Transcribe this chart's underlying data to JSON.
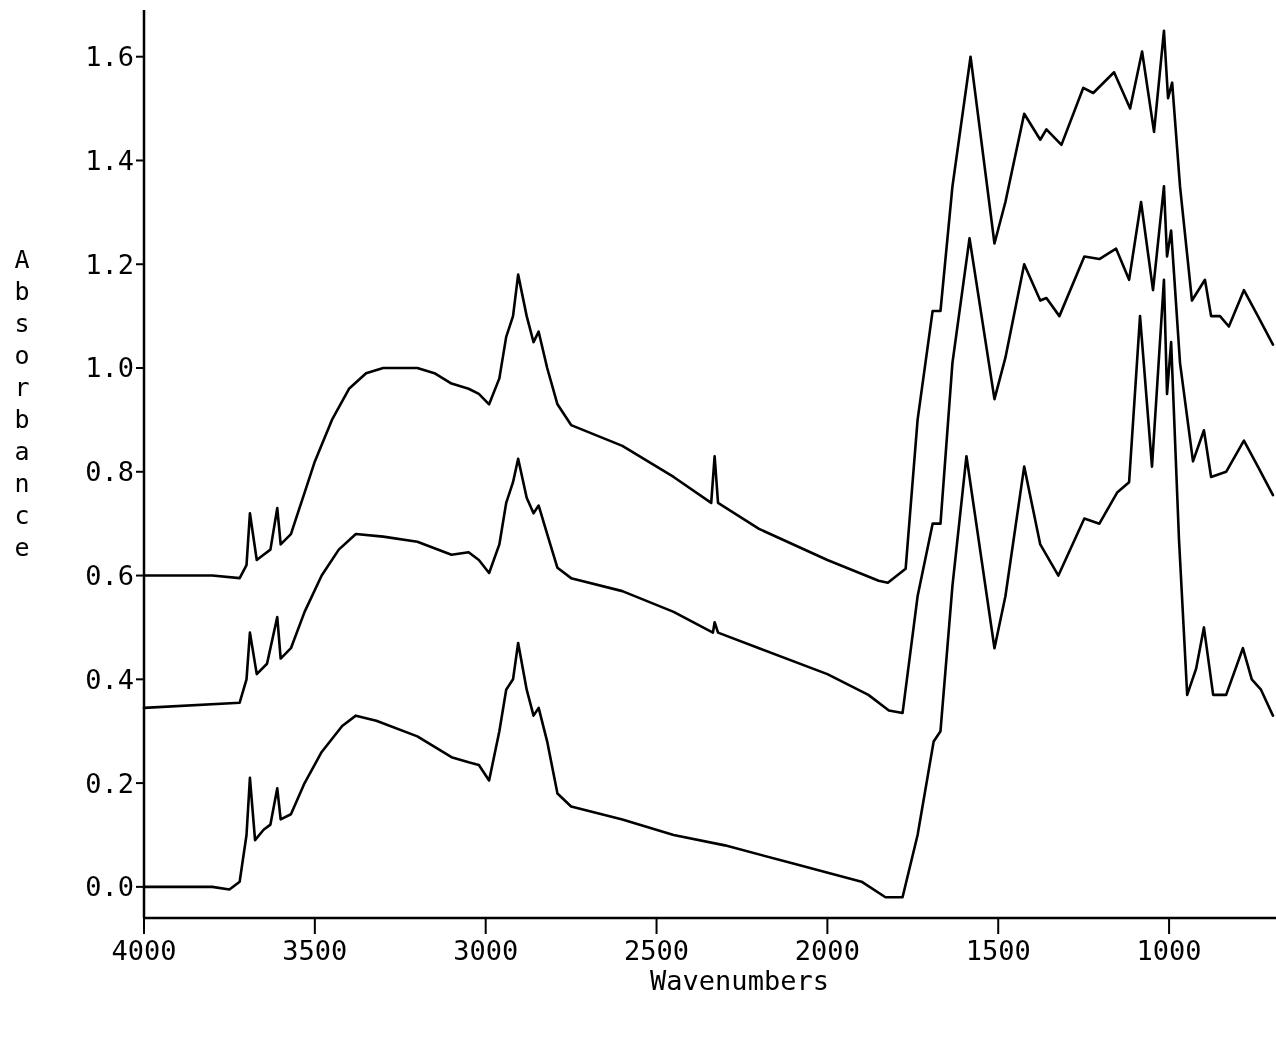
{
  "chart_data": {
    "type": "line",
    "xlabel": "Wavenumbers",
    "ylabel": "Absorbance",
    "xlim": [
      4000,
      690
    ],
    "ylim": [
      -0.06,
      1.69
    ],
    "xticks": [
      4000,
      3500,
      3000,
      2500,
      2000,
      1500,
      1000
    ],
    "yticks": [
      {
        "value": 0,
        "label": "0.0"
      },
      0.2,
      0.4,
      0.6,
      0.8,
      {
        "value": 1,
        "label": "1.0"
      },
      1.2,
      1.4,
      1.6
    ],
    "series": [
      {
        "color": "#000000",
        "x": [
          4000,
          3800,
          3720,
          3700,
          3690,
          3670,
          3650,
          3630,
          3610,
          3600,
          3570,
          3530,
          3500,
          3450,
          3400,
          3350,
          3300,
          3200,
          3150,
          3100,
          3050,
          3020,
          2990,
          2960,
          2940,
          2920,
          2905,
          2880,
          2860,
          2845,
          2820,
          2790,
          2750,
          2600,
          2450,
          2340,
          2330,
          2320,
          2200,
          2000,
          1850,
          1823,
          1771,
          1736,
          1692,
          1669,
          1634,
          1581,
          1511,
          1479,
          1424,
          1377,
          1359,
          1315,
          1251,
          1222,
          1161,
          1114,
          1079,
          1044,
          1015,
          1003,
          991,
          968,
          933,
          895,
          877,
          851,
          825,
          781,
          740,
          696
        ],
        "values": [
          0.6,
          0.6,
          0.595,
          0.62,
          0.72,
          0.63,
          0.64,
          0.65,
          0.73,
          0.66,
          0.68,
          0.76,
          0.82,
          0.9,
          0.96,
          0.99,
          1.0,
          1.0,
          0.99,
          0.97,
          0.96,
          0.95,
          0.93,
          0.98,
          1.06,
          1.1,
          1.18,
          1.1,
          1.05,
          1.07,
          1.0,
          0.93,
          0.89,
          0.85,
          0.79,
          0.74,
          0.83,
          0.74,
          0.69,
          0.63,
          0.59,
          0.586,
          0.613,
          0.9,
          1.11,
          1.11,
          1.35,
          1.6,
          1.24,
          1.32,
          1.49,
          1.44,
          1.46,
          1.43,
          1.54,
          1.53,
          1.57,
          1.5,
          1.61,
          1.455,
          1.65,
          1.52,
          1.55,
          1.35,
          1.13,
          1.17,
          1.1,
          1.1,
          1.08,
          1.15,
          1.1,
          1.045
        ]
      },
      {
        "color": "#000000",
        "x": [
          4000,
          3720,
          3700,
          3690,
          3670,
          3640,
          3610,
          3600,
          3570,
          3530,
          3480,
          3430,
          3380,
          3300,
          3200,
          3100,
          3050,
          3020,
          2990,
          2960,
          2940,
          2920,
          2905,
          2880,
          2860,
          2845,
          2820,
          2790,
          2750,
          2600,
          2450,
          2335,
          2330,
          2320,
          2200,
          2000,
          1880,
          1820,
          1780,
          1736,
          1692,
          1669,
          1634,
          1584,
          1511,
          1479,
          1424,
          1377,
          1359,
          1321,
          1248,
          1204,
          1155,
          1117,
          1082,
          1047,
          1015,
          1006,
          994,
          968,
          930,
          898,
          877,
          833,
          781,
          740,
          696
        ],
        "values": [
          0.345,
          0.355,
          0.4,
          0.49,
          0.41,
          0.43,
          0.52,
          0.44,
          0.46,
          0.53,
          0.6,
          0.65,
          0.68,
          0.675,
          0.665,
          0.64,
          0.645,
          0.63,
          0.605,
          0.66,
          0.74,
          0.78,
          0.825,
          0.75,
          0.72,
          0.735,
          0.68,
          0.615,
          0.595,
          0.57,
          0.53,
          0.49,
          0.51,
          0.49,
          0.46,
          0.41,
          0.37,
          0.34,
          0.335,
          0.56,
          0.7,
          0.7,
          1.01,
          1.25,
          0.94,
          1.02,
          1.2,
          1.13,
          1.135,
          1.1,
          1.215,
          1.21,
          1.23,
          1.17,
          1.32,
          1.15,
          1.35,
          1.215,
          1.265,
          1.01,
          0.82,
          0.88,
          0.79,
          0.8,
          0.86,
          0.81,
          0.755
        ]
      },
      {
        "color": "#000000",
        "x": [
          4000,
          3800,
          3750,
          3720,
          3700,
          3690,
          3675,
          3650,
          3630,
          3610,
          3600,
          3570,
          3530,
          3480,
          3420,
          3380,
          3320,
          3200,
          3100,
          3050,
          3020,
          2990,
          2960,
          2940,
          2920,
          2905,
          2880,
          2860,
          2845,
          2820,
          2790,
          2750,
          2600,
          2450,
          2300,
          2100,
          1900,
          1830,
          1780,
          1736,
          1689,
          1669,
          1634,
          1593,
          1511,
          1479,
          1424,
          1377,
          1324,
          1248,
          1204,
          1152,
          1117,
          1085,
          1050,
          1015,
          1006,
          994,
          971,
          947,
          921,
          898,
          871,
          833,
          784,
          758,
          731,
          696
        ],
        "values": [
          0.0,
          0.0,
          -0.005,
          0.01,
          0.1,
          0.21,
          0.09,
          0.11,
          0.12,
          0.19,
          0.13,
          0.14,
          0.2,
          0.26,
          0.31,
          0.33,
          0.32,
          0.29,
          0.25,
          0.24,
          0.235,
          0.205,
          0.3,
          0.38,
          0.4,
          0.47,
          0.38,
          0.33,
          0.345,
          0.28,
          0.18,
          0.155,
          0.13,
          0.1,
          0.08,
          0.045,
          0.01,
          -0.02,
          -0.02,
          0.1,
          0.28,
          0.3,
          0.58,
          0.83,
          0.46,
          0.56,
          0.81,
          0.66,
          0.6,
          0.71,
          0.7,
          0.76,
          0.78,
          1.1,
          0.81,
          1.17,
          0.95,
          1.05,
          0.67,
          0.37,
          0.42,
          0.5,
          0.37,
          0.37,
          0.46,
          0.4,
          0.38,
          0.33
        ]
      }
    ]
  }
}
